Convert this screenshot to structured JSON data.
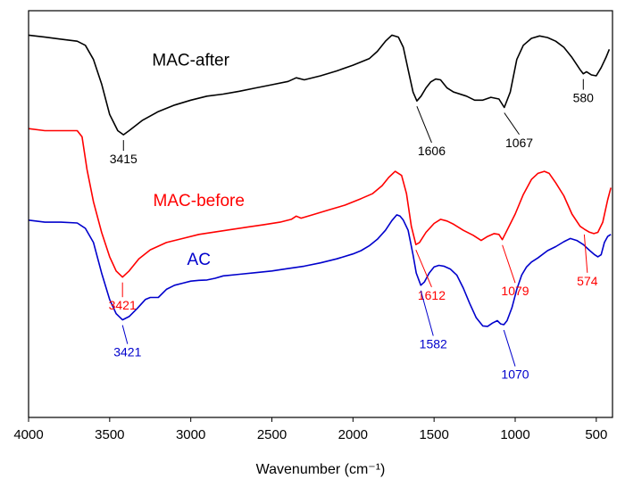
{
  "chart_data": {
    "type": "line",
    "xlabel": "Wavenumber (cm⁻¹)",
    "ylabel": "",
    "x_reversed": true,
    "xlim": [
      4000,
      400
    ],
    "ylim": [
      0,
      1
    ],
    "x_ticks": [
      4000,
      3500,
      3000,
      2500,
      2000,
      1500,
      1000,
      500
    ],
    "y_ticks_shown": false,
    "grid": false,
    "series": [
      {
        "name": "MAC-after",
        "color": "#000000",
        "points": [
          [
            4000,
            0.94
          ],
          [
            3900,
            0.935
          ],
          [
            3800,
            0.93
          ],
          [
            3700,
            0.925
          ],
          [
            3650,
            0.915
          ],
          [
            3600,
            0.88
          ],
          [
            3550,
            0.82
          ],
          [
            3500,
            0.745
          ],
          [
            3450,
            0.705
          ],
          [
            3415,
            0.695
          ],
          [
            3380,
            0.705
          ],
          [
            3300,
            0.73
          ],
          [
            3200,
            0.752
          ],
          [
            3100,
            0.768
          ],
          [
            3000,
            0.78
          ],
          [
            2900,
            0.79
          ],
          [
            2800,
            0.795
          ],
          [
            2700,
            0.802
          ],
          [
            2600,
            0.81
          ],
          [
            2500,
            0.818
          ],
          [
            2400,
            0.826
          ],
          [
            2350,
            0.835
          ],
          [
            2300,
            0.83
          ],
          [
            2200,
            0.84
          ],
          [
            2100,
            0.852
          ],
          [
            2000,
            0.866
          ],
          [
            1900,
            0.882
          ],
          [
            1850,
            0.9
          ],
          [
            1800,
            0.925
          ],
          [
            1760,
            0.94
          ],
          [
            1720,
            0.935
          ],
          [
            1690,
            0.91
          ],
          [
            1660,
            0.855
          ],
          [
            1630,
            0.8
          ],
          [
            1606,
            0.778
          ],
          [
            1580,
            0.79
          ],
          [
            1550,
            0.81
          ],
          [
            1520,
            0.825
          ],
          [
            1490,
            0.832
          ],
          [
            1460,
            0.83
          ],
          [
            1420,
            0.81
          ],
          [
            1380,
            0.8
          ],
          [
            1300,
            0.79
          ],
          [
            1250,
            0.78
          ],
          [
            1200,
            0.78
          ],
          [
            1150,
            0.787
          ],
          [
            1100,
            0.783
          ],
          [
            1067,
            0.762
          ],
          [
            1030,
            0.8
          ],
          [
            990,
            0.88
          ],
          [
            950,
            0.915
          ],
          [
            900,
            0.932
          ],
          [
            850,
            0.938
          ],
          [
            800,
            0.934
          ],
          [
            750,
            0.925
          ],
          [
            700,
            0.91
          ],
          [
            650,
            0.885
          ],
          [
            600,
            0.855
          ],
          [
            580,
            0.845
          ],
          [
            560,
            0.85
          ],
          [
            530,
            0.842
          ],
          [
            500,
            0.84
          ],
          [
            470,
            0.86
          ],
          [
            440,
            0.885
          ],
          [
            420,
            0.905
          ]
        ]
      },
      {
        "name": "MAC-before",
        "color": "#ff0000",
        "points": [
          [
            4000,
            0.71
          ],
          [
            3900,
            0.705
          ],
          [
            3800,
            0.705
          ],
          [
            3700,
            0.705
          ],
          [
            3670,
            0.69
          ],
          [
            3640,
            0.61
          ],
          [
            3600,
            0.53
          ],
          [
            3550,
            0.455
          ],
          [
            3500,
            0.395
          ],
          [
            3460,
            0.36
          ],
          [
            3421,
            0.345
          ],
          [
            3380,
            0.36
          ],
          [
            3320,
            0.39
          ],
          [
            3250,
            0.412
          ],
          [
            3150,
            0.43
          ],
          [
            3050,
            0.44
          ],
          [
            2950,
            0.45
          ],
          [
            2850,
            0.456
          ],
          [
            2750,
            0.462
          ],
          [
            2650,
            0.468
          ],
          [
            2550,
            0.474
          ],
          [
            2450,
            0.48
          ],
          [
            2380,
            0.487
          ],
          [
            2350,
            0.495
          ],
          [
            2320,
            0.49
          ],
          [
            2250,
            0.498
          ],
          [
            2150,
            0.51
          ],
          [
            2050,
            0.522
          ],
          [
            1950,
            0.538
          ],
          [
            1880,
            0.55
          ],
          [
            1820,
            0.57
          ],
          [
            1780,
            0.59
          ],
          [
            1740,
            0.605
          ],
          [
            1700,
            0.595
          ],
          [
            1670,
            0.55
          ],
          [
            1640,
            0.47
          ],
          [
            1612,
            0.425
          ],
          [
            1590,
            0.43
          ],
          [
            1550,
            0.455
          ],
          [
            1500,
            0.477
          ],
          [
            1460,
            0.487
          ],
          [
            1420,
            0.483
          ],
          [
            1380,
            0.475
          ],
          [
            1320,
            0.46
          ],
          [
            1260,
            0.448
          ],
          [
            1210,
            0.435
          ],
          [
            1170,
            0.445
          ],
          [
            1130,
            0.452
          ],
          [
            1100,
            0.45
          ],
          [
            1079,
            0.437
          ],
          [
            1050,
            0.46
          ],
          [
            1000,
            0.5
          ],
          [
            950,
            0.548
          ],
          [
            900,
            0.585
          ],
          [
            860,
            0.6
          ],
          [
            820,
            0.605
          ],
          [
            790,
            0.6
          ],
          [
            750,
            0.577
          ],
          [
            700,
            0.545
          ],
          [
            650,
            0.5
          ],
          [
            600,
            0.47
          ],
          [
            574,
            0.463
          ],
          [
            545,
            0.456
          ],
          [
            515,
            0.452
          ],
          [
            490,
            0.455
          ],
          [
            460,
            0.48
          ],
          [
            430,
            0.535
          ],
          [
            410,
            0.565
          ]
        ]
      },
      {
        "name": "AC",
        "color": "#0000cc",
        "points": [
          [
            4000,
            0.485
          ],
          [
            3900,
            0.48
          ],
          [
            3800,
            0.48
          ],
          [
            3700,
            0.478
          ],
          [
            3650,
            0.465
          ],
          [
            3600,
            0.43
          ],
          [
            3550,
            0.355
          ],
          [
            3500,
            0.29
          ],
          [
            3460,
            0.255
          ],
          [
            3421,
            0.24
          ],
          [
            3380,
            0.248
          ],
          [
            3330,
            0.268
          ],
          [
            3280,
            0.29
          ],
          [
            3250,
            0.295
          ],
          [
            3200,
            0.295
          ],
          [
            3150,
            0.315
          ],
          [
            3100,
            0.325
          ],
          [
            3050,
            0.33
          ],
          [
            3000,
            0.335
          ],
          [
            2950,
            0.337
          ],
          [
            2900,
            0.338
          ],
          [
            2850,
            0.342
          ],
          [
            2800,
            0.348
          ],
          [
            2700,
            0.352
          ],
          [
            2600,
            0.356
          ],
          [
            2500,
            0.36
          ],
          [
            2400,
            0.366
          ],
          [
            2300,
            0.372
          ],
          [
            2200,
            0.38
          ],
          [
            2100,
            0.39
          ],
          [
            2000,
            0.402
          ],
          [
            1950,
            0.41
          ],
          [
            1900,
            0.422
          ],
          [
            1850,
            0.438
          ],
          [
            1800,
            0.46
          ],
          [
            1760,
            0.484
          ],
          [
            1730,
            0.498
          ],
          [
            1710,
            0.495
          ],
          [
            1690,
            0.485
          ],
          [
            1660,
            0.46
          ],
          [
            1630,
            0.4
          ],
          [
            1610,
            0.355
          ],
          [
            1582,
            0.325
          ],
          [
            1560,
            0.333
          ],
          [
            1530,
            0.355
          ],
          [
            1500,
            0.37
          ],
          [
            1470,
            0.374
          ],
          [
            1440,
            0.372
          ],
          [
            1400,
            0.365
          ],
          [
            1360,
            0.35
          ],
          [
            1320,
            0.318
          ],
          [
            1280,
            0.28
          ],
          [
            1240,
            0.245
          ],
          [
            1200,
            0.225
          ],
          [
            1170,
            0.224
          ],
          [
            1140,
            0.232
          ],
          [
            1110,
            0.238
          ],
          [
            1090,
            0.23
          ],
          [
            1070,
            0.228
          ],
          [
            1050,
            0.238
          ],
          [
            1020,
            0.27
          ],
          [
            990,
            0.315
          ],
          [
            960,
            0.35
          ],
          [
            930,
            0.37
          ],
          [
            900,
            0.382
          ],
          [
            860,
            0.392
          ],
          [
            800,
            0.41
          ],
          [
            750,
            0.42
          ],
          [
            700,
            0.432
          ],
          [
            660,
            0.44
          ],
          [
            620,
            0.435
          ],
          [
            580,
            0.425
          ],
          [
            540,
            0.41
          ],
          [
            510,
            0.4
          ],
          [
            490,
            0.395
          ],
          [
            470,
            0.4
          ],
          [
            450,
            0.43
          ],
          [
            430,
            0.445
          ],
          [
            410,
            0.45
          ]
        ]
      }
    ],
    "annotations": {
      "series_labels": [
        {
          "text": "MAC-after",
          "series": "MAC-after",
          "x": 3000,
          "y": 0.865
        },
        {
          "text": "MAC-before",
          "series": "MAC-before",
          "x": 2950,
          "y": 0.52
        },
        {
          "text": "AC",
          "series": "AC",
          "x": 2950,
          "y": 0.375
        }
      ],
      "peaks": [
        {
          "text": "3415",
          "series": "MAC-after",
          "x": 3415,
          "y": 0.695,
          "label_x": 3415,
          "label_y": 0.625
        },
        {
          "text": "1606",
          "series": "MAC-after",
          "x": 1606,
          "y": 0.778,
          "label_x": 1515,
          "label_y": 0.645
        },
        {
          "text": "1067",
          "series": "MAC-after",
          "x": 1067,
          "y": 0.762,
          "label_x": 975,
          "label_y": 0.665
        },
        {
          "text": "580",
          "series": "MAC-after",
          "x": 580,
          "y": 0.845,
          "label_x": 580,
          "label_y": 0.775
        },
        {
          "text": "1612",
          "series": "MAC-before",
          "x": 1612,
          "y": 0.425,
          "label_x": 1515,
          "label_y": 0.29
        },
        {
          "text": "1079",
          "series": "MAC-before",
          "x": 1079,
          "y": 0.437,
          "label_x": 1000,
          "label_y": 0.3
        },
        {
          "text": "574",
          "series": "MAC-before",
          "x": 574,
          "y": 0.463,
          "label_x": 555,
          "label_y": 0.325
        },
        {
          "text": "3421",
          "series": "MAC-before",
          "x": 3421,
          "y": 0.345,
          "label_x": 3421,
          "label_y": 0.265
        },
        {
          "text": "1582",
          "series": "AC",
          "x": 1582,
          "y": 0.325,
          "label_x": 1505,
          "label_y": 0.17
        },
        {
          "text": "1070",
          "series": "AC",
          "x": 1070,
          "y": 0.228,
          "label_x": 1000,
          "label_y": 0.095
        },
        {
          "text": "3421",
          "series": "AC",
          "x": 3421,
          "y": 0.24,
          "label_x": 3390,
          "label_y": 0.15
        }
      ]
    }
  }
}
